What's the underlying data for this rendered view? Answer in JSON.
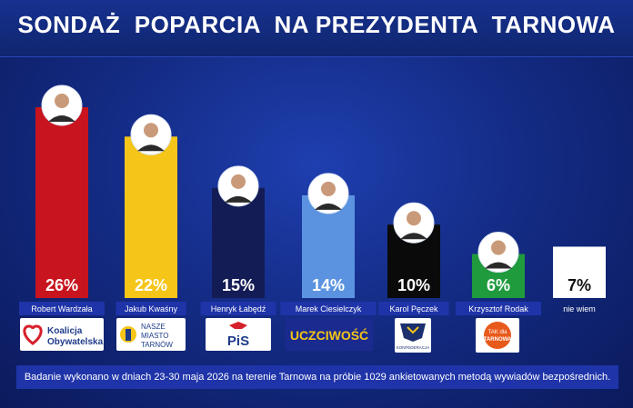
{
  "title": "SONDAŻ  POPARCIA  NA PREZYDENTA  TARNOWA",
  "footer": "Badanie wykonano w dniach 23-30 maja 2026 na terenie Tarnowa na próbie 1029 ankietowanych metodą wywiadów bezpośrednich.",
  "colors": {
    "background": "#142c86",
    "label_box": "#1f34a8"
  },
  "logos": {
    "ko": {
      "line1": "Koalicja",
      "line2": "Obywatelska"
    },
    "nmt": {
      "line1": "NASZE",
      "line2": "MIASTO",
      "line3": "TARNÓW"
    },
    "pis": {
      "text": "PiS"
    },
    "uczciwosc": {
      "text": "UCZCIWOŚĆ"
    },
    "konfederacja": {
      "text": "KONFEDERACJA"
    },
    "tak": {
      "line1": "TAK dla",
      "line2": "TARNOWA"
    }
  },
  "chart_data": {
    "type": "bar",
    "title": "SONDAŻ  POPARCIA  NA PREZYDENTA  TARNOWA",
    "categories": [
      "Robert Wardzała",
      "Jakub Kwaśny",
      "Henryk Łabędź",
      "Marek Ciesielczyk",
      "Karol Pęczek",
      "Krzysztof Rodak",
      "nie wiem"
    ],
    "values": [
      26,
      22,
      15,
      14,
      10,
      6,
      7
    ],
    "value_labels": [
      "26%",
      "22%",
      "15%",
      "14%",
      "10%",
      "6%",
      "7%"
    ],
    "colors": [
      "#c8141e",
      "#f5c518",
      "#141c55",
      "#5b93e0",
      "#0a0a0a",
      "#1f9a3c",
      "#ffffff"
    ],
    "label_colors": [
      "#ffffff",
      "#ffffff",
      "#ffffff",
      "#ffffff",
      "#ffffff",
      "#ffffff",
      "#111111"
    ],
    "has_photo": [
      true,
      true,
      true,
      true,
      true,
      true,
      false
    ],
    "ylim": [
      0,
      26
    ],
    "grid": false,
    "legend": "none"
  }
}
